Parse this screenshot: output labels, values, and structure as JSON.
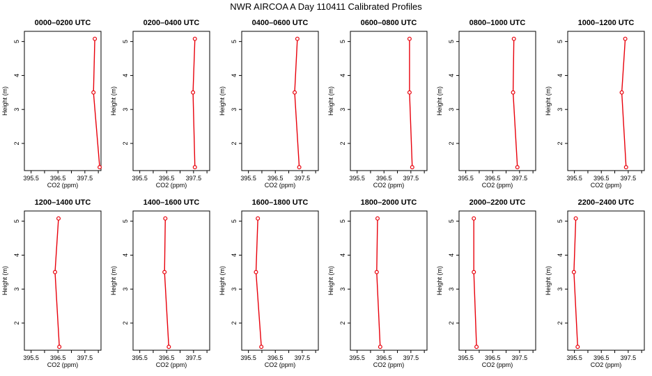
{
  "page_title": "NWR AIRCOA A  Day 110411  Calibrated Profiles",
  "colors": {
    "series": "#e8000b",
    "axis": "#000000",
    "background": "#ffffff"
  },
  "chart_data": [
    {
      "type": "line",
      "title": "0000–0200 UTC",
      "xlabel": "CO2 (ppm)",
      "ylabel": "Height (m)",
      "xlim": [
        395.25,
        398.1
      ],
      "ylim": [
        1.2,
        5.3
      ],
      "xticks": [
        395.5,
        396.5,
        397.5
      ],
      "xtick_labels": [
        "395.5",
        "396.5",
        "397.5"
      ],
      "minor_xticks": [
        396.0,
        397.0,
        398.0
      ],
      "yticks": [
        2,
        3,
        4,
        5
      ],
      "x": [
        397.87,
        397.82,
        398.05
      ],
      "y": [
        5.08,
        3.5,
        1.3
      ]
    },
    {
      "type": "line",
      "title": "0200–0400 UTC",
      "xlabel": "CO2 (ppm)",
      "ylabel": "Height (m)",
      "xlim": [
        395.25,
        398.1
      ],
      "ylim": [
        1.2,
        5.3
      ],
      "xticks": [
        395.5,
        396.5,
        397.5
      ],
      "xtick_labels": [
        "395.5",
        "396.5",
        "397.5"
      ],
      "minor_xticks": [
        396.0,
        397.0,
        398.0
      ],
      "yticks": [
        2,
        3,
        4,
        5
      ],
      "x": [
        397.55,
        397.48,
        397.55
      ],
      "y": [
        5.08,
        3.5,
        1.3
      ]
    },
    {
      "type": "line",
      "title": "0400–0600 UTC",
      "xlabel": "CO2 (ppm)",
      "ylabel": "Height (m)",
      "xlim": [
        395.25,
        398.1
      ],
      "ylim": [
        1.2,
        5.3
      ],
      "xticks": [
        395.5,
        396.5,
        397.5
      ],
      "xtick_labels": [
        "395.5",
        "396.5",
        "397.5"
      ],
      "minor_xticks": [
        396.0,
        397.0,
        398.0
      ],
      "yticks": [
        2,
        3,
        4,
        5
      ],
      "x": [
        397.32,
        397.22,
        397.39
      ],
      "y": [
        5.08,
        3.5,
        1.3
      ]
    },
    {
      "type": "line",
      "title": "0600–0800 UTC",
      "xlabel": "CO2 (ppm)",
      "ylabel": "Height (m)",
      "xlim": [
        395.25,
        398.1
      ],
      "ylim": [
        1.2,
        5.3
      ],
      "xticks": [
        395.5,
        396.5,
        397.5
      ],
      "xtick_labels": [
        "395.5",
        "396.5",
        "397.5"
      ],
      "minor_xticks": [
        396.0,
        397.0,
        398.0
      ],
      "yticks": [
        2,
        3,
        4,
        5
      ],
      "x": [
        397.45,
        397.45,
        397.55
      ],
      "y": [
        5.08,
        3.5,
        1.3
      ]
    },
    {
      "type": "line",
      "title": "0800–1000 UTC",
      "xlabel": "CO2 (ppm)",
      "ylabel": "Height (m)",
      "xlim": [
        395.25,
        398.1
      ],
      "ylim": [
        1.2,
        5.3
      ],
      "xticks": [
        395.5,
        396.5,
        397.5
      ],
      "xtick_labels": [
        "395.5",
        "396.5",
        "397.5"
      ],
      "minor_xticks": [
        396.0,
        397.0,
        398.0
      ],
      "yticks": [
        2,
        3,
        4,
        5
      ],
      "x": [
        397.29,
        397.26,
        397.42
      ],
      "y": [
        5.08,
        3.5,
        1.3
      ]
    },
    {
      "type": "line",
      "title": "1000–1200 UTC",
      "xlabel": "CO2 (ppm)",
      "ylabel": "Height (m)",
      "xlim": [
        395.25,
        398.1
      ],
      "ylim": [
        1.2,
        5.3
      ],
      "xticks": [
        395.5,
        396.5,
        397.5
      ],
      "xtick_labels": [
        "395.5",
        "396.5",
        "397.5"
      ],
      "minor_xticks": [
        396.0,
        397.0,
        398.0
      ],
      "yticks": [
        2,
        3,
        4,
        5
      ],
      "x": [
        397.39,
        397.26,
        397.42
      ],
      "y": [
        5.08,
        3.5,
        1.3
      ]
    },
    {
      "type": "line",
      "title": "1200–1400 UTC",
      "xlabel": "CO2 (ppm)",
      "ylabel": "Height (m)",
      "xlim": [
        395.25,
        398.1
      ],
      "ylim": [
        1.2,
        5.3
      ],
      "xticks": [
        395.5,
        396.5,
        397.5
      ],
      "xtick_labels": [
        "395.5",
        "396.5",
        "397.5"
      ],
      "minor_xticks": [
        396.0,
        397.0,
        398.0
      ],
      "yticks": [
        2,
        3,
        4,
        5
      ],
      "x": [
        396.52,
        396.39,
        396.55
      ],
      "y": [
        5.08,
        3.5,
        1.3
      ]
    },
    {
      "type": "line",
      "title": "1400–1600 UTC",
      "xlabel": "CO2 (ppm)",
      "ylabel": "Height (m)",
      "xlim": [
        395.25,
        398.1
      ],
      "ylim": [
        1.2,
        5.3
      ],
      "xticks": [
        395.5,
        396.5,
        397.5
      ],
      "xtick_labels": [
        "395.5",
        "396.5",
        "397.5"
      ],
      "minor_xticks": [
        396.0,
        397.0,
        398.0
      ],
      "yticks": [
        2,
        3,
        4,
        5
      ],
      "x": [
        396.45,
        396.42,
        396.58
      ],
      "y": [
        5.08,
        3.5,
        1.3
      ]
    },
    {
      "type": "line",
      "title": "1600–1800 UTC",
      "xlabel": "CO2 (ppm)",
      "ylabel": "Height (m)",
      "xlim": [
        395.25,
        398.1
      ],
      "ylim": [
        1.2,
        5.3
      ],
      "xticks": [
        395.5,
        396.5,
        397.5
      ],
      "xtick_labels": [
        "395.5",
        "396.5",
        "397.5"
      ],
      "minor_xticks": [
        396.0,
        397.0,
        398.0
      ],
      "yticks": [
        2,
        3,
        4,
        5
      ],
      "x": [
        395.85,
        395.78,
        395.98
      ],
      "y": [
        5.08,
        3.5,
        1.3
      ]
    },
    {
      "type": "line",
      "title": "1800–2000 UTC",
      "xlabel": "CO2 (ppm)",
      "ylabel": "Height (m)",
      "xlim": [
        395.25,
        398.1
      ],
      "ylim": [
        1.2,
        5.3
      ],
      "xticks": [
        395.5,
        396.5,
        397.5
      ],
      "xtick_labels": [
        "395.5",
        "396.5",
        "397.5"
      ],
      "minor_xticks": [
        396.0,
        397.0,
        398.0
      ],
      "yticks": [
        2,
        3,
        4,
        5
      ],
      "x": [
        396.26,
        396.23,
        396.36
      ],
      "y": [
        5.08,
        3.5,
        1.3
      ]
    },
    {
      "type": "line",
      "title": "2000–2200 UTC",
      "xlabel": "CO2 (ppm)",
      "ylabel": "Height (m)",
      "xlim": [
        395.25,
        398.1
      ],
      "ylim": [
        1.2,
        5.3
      ],
      "xticks": [
        395.5,
        396.5,
        397.5
      ],
      "xtick_labels": [
        "395.5",
        "396.5",
        "397.5"
      ],
      "minor_xticks": [
        396.0,
        397.0,
        398.0
      ],
      "yticks": [
        2,
        3,
        4,
        5
      ],
      "x": [
        395.8,
        395.8,
        395.9
      ],
      "y": [
        5.08,
        3.5,
        1.3
      ]
    },
    {
      "type": "line",
      "title": "2200–2400 UTC",
      "xlabel": "CO2 (ppm)",
      "ylabel": "Height (m)",
      "xlim": [
        395.25,
        398.1
      ],
      "ylim": [
        1.2,
        5.3
      ],
      "xticks": [
        395.5,
        396.5,
        397.5
      ],
      "xtick_labels": [
        "395.5",
        "396.5",
        "397.5"
      ],
      "minor_xticks": [
        396.0,
        397.0,
        398.0
      ],
      "yticks": [
        2,
        3,
        4,
        5
      ],
      "x": [
        395.55,
        395.48,
        395.62
      ],
      "y": [
        5.08,
        3.5,
        1.3
      ]
    }
  ]
}
